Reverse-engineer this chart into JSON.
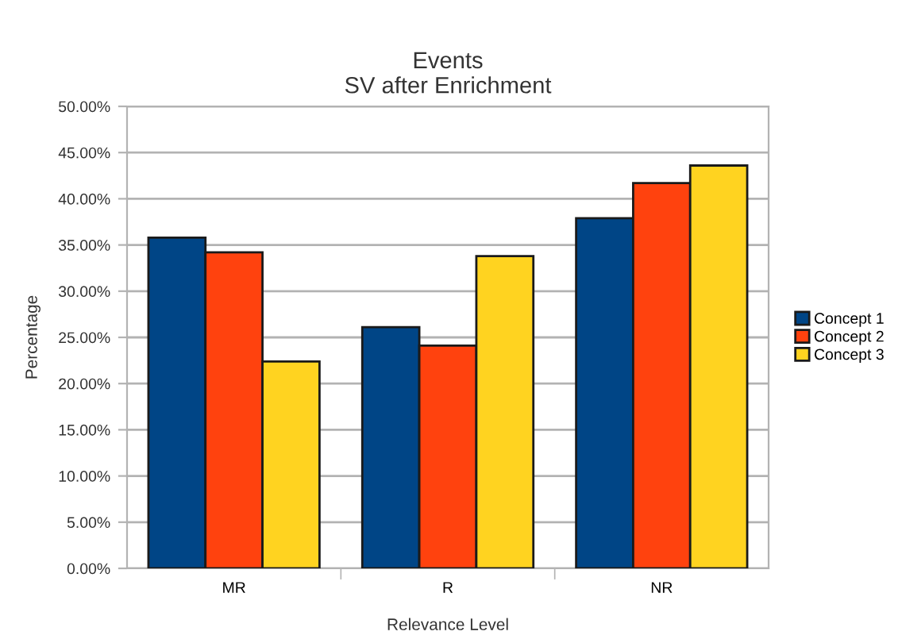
{
  "chart_data": {
    "type": "bar",
    "title": "Events\nSV after Enrichment",
    "xlabel": "Relevance Level",
    "ylabel": "Percentage",
    "categories": [
      "MR",
      "R",
      "NR"
    ],
    "series": [
      {
        "name": "Concept 1",
        "color": "#004586",
        "values": [
          35.8,
          26.1,
          37.9
        ]
      },
      {
        "name": "Concept 2",
        "color": "#ff420e",
        "values": [
          34.2,
          24.1,
          41.7
        ]
      },
      {
        "name": "Concept 3",
        "color": "#ffd320",
        "values": [
          22.4,
          33.8,
          43.6
        ]
      }
    ],
    "ylim": [
      0,
      50
    ],
    "yticks": [
      {
        "value": 0,
        "label": "0.00%"
      },
      {
        "value": 5,
        "label": "5.00%"
      },
      {
        "value": 10,
        "label": "10.00%"
      },
      {
        "value": 15,
        "label": "15.00%"
      },
      {
        "value": 20,
        "label": "20.00%"
      },
      {
        "value": 25,
        "label": "25.00%"
      },
      {
        "value": 30,
        "label": "30.00%"
      },
      {
        "value": 35,
        "label": "35.00%"
      },
      {
        "value": 40,
        "label": "40.00%"
      },
      {
        "value": 45,
        "label": "45.00%"
      },
      {
        "value": 50,
        "label": "50.00%"
      }
    ],
    "grid": "y",
    "legend": "right"
  }
}
